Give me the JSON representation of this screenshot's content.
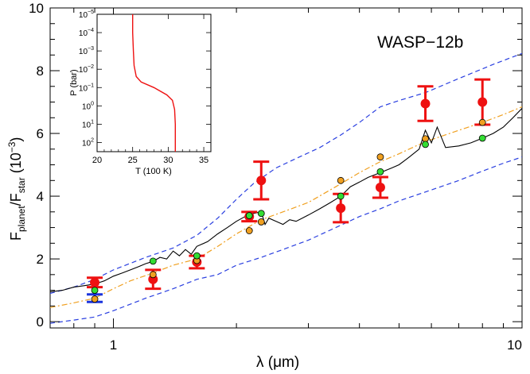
{
  "chart_data": {
    "type": "scatter",
    "planet_label": "WASP−12b",
    "xlabel": {
      "main": "λ (",
      "unit": "μm",
      "close": ")"
    },
    "ylabel": {
      "f": "F",
      "planet": "planet",
      "slash": "/F",
      "star": "star",
      "scale_open": " (10",
      "scale_exp": "−3",
      "scale_close": ")"
    },
    "x_scale": "log",
    "xlim": [
      0.7,
      10
    ],
    "ylim": [
      -0.2,
      10
    ],
    "x_ticks": [
      {
        "value": 1,
        "label": "1"
      },
      {
        "value": 10,
        "label": "10"
      }
    ],
    "y_ticks": [
      0,
      2,
      4,
      6,
      8,
      10
    ],
    "colors": {
      "data": "#ee1111",
      "data_blue": "#1a33dd",
      "green": "#33dd33",
      "orange": "#f0a020",
      "blue_model": "#2a3fe0",
      "orange_model": "#f0a020",
      "black_model": "#000000"
    },
    "observations": [
      {
        "x": 0.9,
        "y": 1.25,
        "err": 0.15
      },
      {
        "x": 0.9,
        "y": 0.75,
        "err": 0.12,
        "color": "blue"
      },
      {
        "x": 1.25,
        "y": 1.35,
        "err": 0.3
      },
      {
        "x": 1.6,
        "y": 1.9,
        "err": 0.2
      },
      {
        "x": 2.15,
        "y": 3.35,
        "err": 0.15
      },
      {
        "x": 2.3,
        "y": 4.5,
        "err": 0.6
      },
      {
        "x": 3.6,
        "y": 3.62,
        "err": 0.45
      },
      {
        "x": 4.5,
        "y": 4.28,
        "err": 0.33
      },
      {
        "x": 5.8,
        "y": 6.95,
        "err": 0.55
      },
      {
        "x": 8.0,
        "y": 7.0,
        "err": 0.72
      }
    ],
    "model_green": [
      {
        "x": 0.9,
        "y": 1.0
      },
      {
        "x": 1.25,
        "y": 1.93
      },
      {
        "x": 1.6,
        "y": 2.1
      },
      {
        "x": 2.15,
        "y": 3.38
      },
      {
        "x": 2.3,
        "y": 3.45
      },
      {
        "x": 3.6,
        "y": 4.0
      },
      {
        "x": 4.5,
        "y": 4.78
      },
      {
        "x": 5.8,
        "y": 5.65
      },
      {
        "x": 8.0,
        "y": 5.85
      }
    ],
    "model_orange": [
      {
        "x": 0.9,
        "y": 0.72
      },
      {
        "x": 1.25,
        "y": 1.5
      },
      {
        "x": 1.6,
        "y": 1.95
      },
      {
        "x": 2.15,
        "y": 2.9
      },
      {
        "x": 2.3,
        "y": 3.18
      },
      {
        "x": 3.6,
        "y": 4.5
      },
      {
        "x": 4.5,
        "y": 5.25
      },
      {
        "x": 5.8,
        "y": 5.83
      },
      {
        "x": 8.0,
        "y": 6.35
      }
    ],
    "curve_black": [
      [
        0.7,
        0.95
      ],
      [
        0.75,
        1.0
      ],
      [
        0.8,
        1.1
      ],
      [
        0.85,
        1.15
      ],
      [
        0.9,
        1.2
      ],
      [
        0.95,
        1.3
      ],
      [
        1.0,
        1.45
      ],
      [
        1.05,
        1.55
      ],
      [
        1.1,
        1.65
      ],
      [
        1.15,
        1.75
      ],
      [
        1.2,
        1.85
      ],
      [
        1.25,
        1.92
      ],
      [
        1.3,
        2.05
      ],
      [
        1.35,
        2.0
      ],
      [
        1.4,
        2.25
      ],
      [
        1.45,
        2.1
      ],
      [
        1.5,
        2.3
      ],
      [
        1.55,
        2.15
      ],
      [
        1.6,
        2.4
      ],
      [
        1.7,
        2.55
      ],
      [
        1.8,
        2.8
      ],
      [
        1.9,
        3.0
      ],
      [
        2.0,
        3.2
      ],
      [
        2.1,
        3.35
      ],
      [
        2.2,
        3.45
      ],
      [
        2.3,
        3.5
      ],
      [
        2.35,
        3.1
      ],
      [
        2.4,
        3.3
      ],
      [
        2.5,
        3.2
      ],
      [
        2.6,
        3.1
      ],
      [
        2.7,
        3.25
      ],
      [
        2.8,
        3.2
      ],
      [
        3.0,
        3.4
      ],
      [
        3.2,
        3.6
      ],
      [
        3.4,
        3.8
      ],
      [
        3.6,
        4.0
      ],
      [
        3.8,
        4.3
      ],
      [
        4.0,
        4.45
      ],
      [
        4.2,
        4.6
      ],
      [
        4.5,
        4.75
      ],
      [
        4.8,
        4.9
      ],
      [
        5.0,
        5.0
      ],
      [
        5.3,
        5.25
      ],
      [
        5.6,
        5.5
      ],
      [
        5.8,
        6.1
      ],
      [
        6.0,
        5.7
      ],
      [
        6.2,
        6.2
      ],
      [
        6.5,
        5.55
      ],
      [
        7.0,
        5.6
      ],
      [
        7.5,
        5.7
      ],
      [
        8.0,
        5.85
      ],
      [
        8.5,
        6.0
      ],
      [
        9.0,
        6.2
      ],
      [
        9.5,
        6.5
      ],
      [
        10.0,
        6.8
      ]
    ],
    "curve_orange": [
      [
        0.7,
        0.45
      ],
      [
        0.8,
        0.6
      ],
      [
        0.9,
        0.75
      ],
      [
        1.0,
        1.05
      ],
      [
        1.1,
        1.3
      ],
      [
        1.25,
        1.55
      ],
      [
        1.4,
        1.8
      ],
      [
        1.6,
        2.0
      ],
      [
        1.8,
        2.4
      ],
      [
        2.0,
        2.8
      ],
      [
        2.3,
        3.25
      ],
      [
        2.6,
        3.5
      ],
      [
        3.0,
        3.8
      ],
      [
        3.5,
        4.3
      ],
      [
        4.0,
        4.75
      ],
      [
        4.5,
        5.1
      ],
      [
        5.0,
        5.35
      ],
      [
        5.5,
        5.6
      ],
      [
        6.0,
        5.8
      ],
      [
        7.0,
        6.1
      ],
      [
        8.0,
        6.35
      ],
      [
        9.0,
        6.6
      ],
      [
        10.0,
        6.85
      ]
    ],
    "curve_blue_upper": [
      [
        0.7,
        0.9
      ],
      [
        0.8,
        1.1
      ],
      [
        0.9,
        1.35
      ],
      [
        1.0,
        1.65
      ],
      [
        1.2,
        2.05
      ],
      [
        1.4,
        2.35
      ],
      [
        1.6,
        2.75
      ],
      [
        1.8,
        3.3
      ],
      [
        2.0,
        3.9
      ],
      [
        2.2,
        4.4
      ],
      [
        2.5,
        4.9
      ],
      [
        2.8,
        5.2
      ],
      [
        3.2,
        5.55
      ],
      [
        3.6,
        5.95
      ],
      [
        4.0,
        6.35
      ],
      [
        4.5,
        6.85
      ],
      [
        5.0,
        7.05
      ],
      [
        5.8,
        7.3
      ],
      [
        7.0,
        7.75
      ],
      [
        8.5,
        8.2
      ],
      [
        10.0,
        8.55
      ]
    ],
    "curve_blue_lower": [
      [
        0.7,
        -0.05
      ],
      [
        0.8,
        0.05
      ],
      [
        0.9,
        0.15
      ],
      [
        1.0,
        0.35
      ],
      [
        1.2,
        0.75
      ],
      [
        1.4,
        1.05
      ],
      [
        1.6,
        1.35
      ],
      [
        1.8,
        1.5
      ],
      [
        2.0,
        1.8
      ],
      [
        2.3,
        2.05
      ],
      [
        2.6,
        2.3
      ],
      [
        3.0,
        2.6
      ],
      [
        3.5,
        3.0
      ],
      [
        4.0,
        3.35
      ],
      [
        4.5,
        3.6
      ],
      [
        5.0,
        3.85
      ],
      [
        6.0,
        4.2
      ],
      [
        7.0,
        4.5
      ],
      [
        8.0,
        4.8
      ],
      [
        9.0,
        5.05
      ],
      [
        10.0,
        5.25
      ]
    ],
    "inset": {
      "xlabel": "T (100 K)",
      "ylabel": "P (bar)",
      "xlim": [
        20,
        36
      ],
      "x_ticks": [
        20,
        25,
        30,
        35
      ],
      "y_ticks": [
        {
          "exp": -5
        },
        {
          "exp": -4
        },
        {
          "exp": -3
        },
        {
          "exp": -2
        },
        {
          "exp": -1
        },
        {
          "exp": 0
        },
        {
          "exp": 1
        },
        {
          "exp": 2
        }
      ],
      "ylim_log": [
        -5,
        2.5
      ],
      "profile": [
        [
          25.0,
          -5.0
        ],
        [
          25.0,
          -4.0
        ],
        [
          25.1,
          -3.0
        ],
        [
          25.2,
          -2.2
        ],
        [
          25.5,
          -1.6
        ],
        [
          26.2,
          -1.3
        ],
        [
          28.0,
          -1.0
        ],
        [
          29.8,
          -0.6
        ],
        [
          30.6,
          -0.3
        ],
        [
          30.9,
          0.2
        ],
        [
          31.0,
          1.0
        ],
        [
          31.0,
          2.5
        ]
      ]
    }
  }
}
